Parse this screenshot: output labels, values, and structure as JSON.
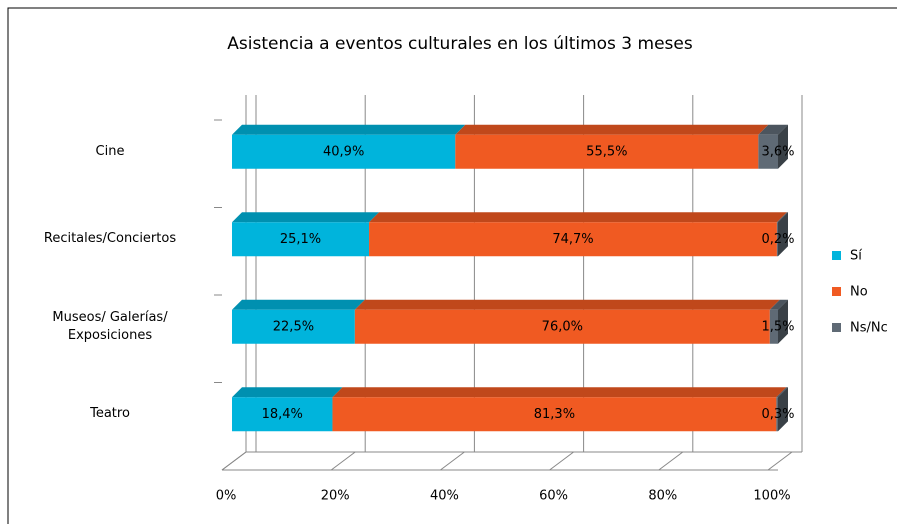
{
  "chart_data": {
    "type": "stacked-bar-3d",
    "title": "Asistencia a eventos culturales en los últimos 3 meses",
    "categories": [
      "Cine",
      "Recitales/Conciertos",
      "Museos/ Galerías/ Exposiciones",
      "Teatro"
    ],
    "series": [
      {
        "name": "Sí",
        "color": "#00b4dc",
        "values": [
          40.9,
          25.1,
          22.5,
          18.4
        ],
        "value_labels": [
          "40,9%",
          "25,1%",
          "22,5%",
          "18,4%"
        ]
      },
      {
        "name": "No",
        "color": "#f05a22",
        "values": [
          55.5,
          74.7,
          76.0,
          81.3
        ],
        "value_labels": [
          "55,5%",
          "74,7%",
          "76,0%",
          "81,3%"
        ]
      },
      {
        "name": "Ns/Nc",
        "color": "#5f6a75",
        "values": [
          3.6,
          0.2,
          1.5,
          0.3
        ],
        "value_labels": [
          "3,6%",
          "0,2%",
          "1,5%",
          "0,3%"
        ]
      }
    ],
    "xlim": [
      0,
      100
    ],
    "xticks": [
      {
        "value": 0,
        "label": "0%"
      },
      {
        "value": 20,
        "label": "20%"
      },
      {
        "value": 40,
        "label": "40%"
      },
      {
        "value": 60,
        "label": "60%"
      },
      {
        "value": 80,
        "label": "80%"
      },
      {
        "value": 100,
        "label": "100%"
      }
    ],
    "grid": true,
    "legend": "right"
  }
}
